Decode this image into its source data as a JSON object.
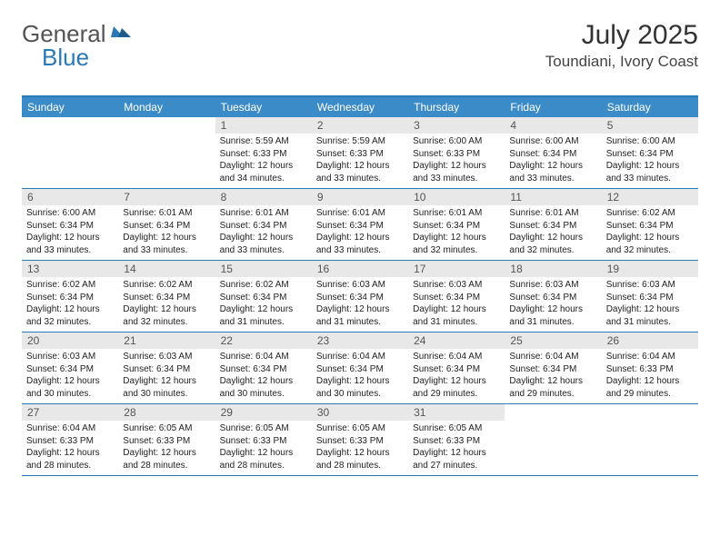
{
  "logo": {
    "text1": "General",
    "text2": "Blue"
  },
  "title": "July 2025",
  "location": "Toundiani, Ivory Coast",
  "colors": {
    "header_bg": "#3b8bc8",
    "border": "#2a7ab8",
    "daynum_bg": "#e8e8e8",
    "text": "#222222"
  },
  "day_headers": [
    "Sunday",
    "Monday",
    "Tuesday",
    "Wednesday",
    "Thursday",
    "Friday",
    "Saturday"
  ],
  "weeks": [
    [
      {
        "num": "",
        "sunrise": "",
        "sunset": "",
        "daylight": ""
      },
      {
        "num": "",
        "sunrise": "",
        "sunset": "",
        "daylight": ""
      },
      {
        "num": "1",
        "sunrise": "Sunrise: 5:59 AM",
        "sunset": "Sunset: 6:33 PM",
        "daylight": "Daylight: 12 hours and 34 minutes."
      },
      {
        "num": "2",
        "sunrise": "Sunrise: 5:59 AM",
        "sunset": "Sunset: 6:33 PM",
        "daylight": "Daylight: 12 hours and 33 minutes."
      },
      {
        "num": "3",
        "sunrise": "Sunrise: 6:00 AM",
        "sunset": "Sunset: 6:33 PM",
        "daylight": "Daylight: 12 hours and 33 minutes."
      },
      {
        "num": "4",
        "sunrise": "Sunrise: 6:00 AM",
        "sunset": "Sunset: 6:34 PM",
        "daylight": "Daylight: 12 hours and 33 minutes."
      },
      {
        "num": "5",
        "sunrise": "Sunrise: 6:00 AM",
        "sunset": "Sunset: 6:34 PM",
        "daylight": "Daylight: 12 hours and 33 minutes."
      }
    ],
    [
      {
        "num": "6",
        "sunrise": "Sunrise: 6:00 AM",
        "sunset": "Sunset: 6:34 PM",
        "daylight": "Daylight: 12 hours and 33 minutes."
      },
      {
        "num": "7",
        "sunrise": "Sunrise: 6:01 AM",
        "sunset": "Sunset: 6:34 PM",
        "daylight": "Daylight: 12 hours and 33 minutes."
      },
      {
        "num": "8",
        "sunrise": "Sunrise: 6:01 AM",
        "sunset": "Sunset: 6:34 PM",
        "daylight": "Daylight: 12 hours and 33 minutes."
      },
      {
        "num": "9",
        "sunrise": "Sunrise: 6:01 AM",
        "sunset": "Sunset: 6:34 PM",
        "daylight": "Daylight: 12 hours and 33 minutes."
      },
      {
        "num": "10",
        "sunrise": "Sunrise: 6:01 AM",
        "sunset": "Sunset: 6:34 PM",
        "daylight": "Daylight: 12 hours and 32 minutes."
      },
      {
        "num": "11",
        "sunrise": "Sunrise: 6:01 AM",
        "sunset": "Sunset: 6:34 PM",
        "daylight": "Daylight: 12 hours and 32 minutes."
      },
      {
        "num": "12",
        "sunrise": "Sunrise: 6:02 AM",
        "sunset": "Sunset: 6:34 PM",
        "daylight": "Daylight: 12 hours and 32 minutes."
      }
    ],
    [
      {
        "num": "13",
        "sunrise": "Sunrise: 6:02 AM",
        "sunset": "Sunset: 6:34 PM",
        "daylight": "Daylight: 12 hours and 32 minutes."
      },
      {
        "num": "14",
        "sunrise": "Sunrise: 6:02 AM",
        "sunset": "Sunset: 6:34 PM",
        "daylight": "Daylight: 12 hours and 32 minutes."
      },
      {
        "num": "15",
        "sunrise": "Sunrise: 6:02 AM",
        "sunset": "Sunset: 6:34 PM",
        "daylight": "Daylight: 12 hours and 31 minutes."
      },
      {
        "num": "16",
        "sunrise": "Sunrise: 6:03 AM",
        "sunset": "Sunset: 6:34 PM",
        "daylight": "Daylight: 12 hours and 31 minutes."
      },
      {
        "num": "17",
        "sunrise": "Sunrise: 6:03 AM",
        "sunset": "Sunset: 6:34 PM",
        "daylight": "Daylight: 12 hours and 31 minutes."
      },
      {
        "num": "18",
        "sunrise": "Sunrise: 6:03 AM",
        "sunset": "Sunset: 6:34 PM",
        "daylight": "Daylight: 12 hours and 31 minutes."
      },
      {
        "num": "19",
        "sunrise": "Sunrise: 6:03 AM",
        "sunset": "Sunset: 6:34 PM",
        "daylight": "Daylight: 12 hours and 31 minutes."
      }
    ],
    [
      {
        "num": "20",
        "sunrise": "Sunrise: 6:03 AM",
        "sunset": "Sunset: 6:34 PM",
        "daylight": "Daylight: 12 hours and 30 minutes."
      },
      {
        "num": "21",
        "sunrise": "Sunrise: 6:03 AM",
        "sunset": "Sunset: 6:34 PM",
        "daylight": "Daylight: 12 hours and 30 minutes."
      },
      {
        "num": "22",
        "sunrise": "Sunrise: 6:04 AM",
        "sunset": "Sunset: 6:34 PM",
        "daylight": "Daylight: 12 hours and 30 minutes."
      },
      {
        "num": "23",
        "sunrise": "Sunrise: 6:04 AM",
        "sunset": "Sunset: 6:34 PM",
        "daylight": "Daylight: 12 hours and 30 minutes."
      },
      {
        "num": "24",
        "sunrise": "Sunrise: 6:04 AM",
        "sunset": "Sunset: 6:34 PM",
        "daylight": "Daylight: 12 hours and 29 minutes."
      },
      {
        "num": "25",
        "sunrise": "Sunrise: 6:04 AM",
        "sunset": "Sunset: 6:34 PM",
        "daylight": "Daylight: 12 hours and 29 minutes."
      },
      {
        "num": "26",
        "sunrise": "Sunrise: 6:04 AM",
        "sunset": "Sunset: 6:33 PM",
        "daylight": "Daylight: 12 hours and 29 minutes."
      }
    ],
    [
      {
        "num": "27",
        "sunrise": "Sunrise: 6:04 AM",
        "sunset": "Sunset: 6:33 PM",
        "daylight": "Daylight: 12 hours and 28 minutes."
      },
      {
        "num": "28",
        "sunrise": "Sunrise: 6:05 AM",
        "sunset": "Sunset: 6:33 PM",
        "daylight": "Daylight: 12 hours and 28 minutes."
      },
      {
        "num": "29",
        "sunrise": "Sunrise: 6:05 AM",
        "sunset": "Sunset: 6:33 PM",
        "daylight": "Daylight: 12 hours and 28 minutes."
      },
      {
        "num": "30",
        "sunrise": "Sunrise: 6:05 AM",
        "sunset": "Sunset: 6:33 PM",
        "daylight": "Daylight: 12 hours and 28 minutes."
      },
      {
        "num": "31",
        "sunrise": "Sunrise: 6:05 AM",
        "sunset": "Sunset: 6:33 PM",
        "daylight": "Daylight: 12 hours and 27 minutes."
      },
      {
        "num": "",
        "sunrise": "",
        "sunset": "",
        "daylight": ""
      },
      {
        "num": "",
        "sunrise": "",
        "sunset": "",
        "daylight": ""
      }
    ]
  ]
}
